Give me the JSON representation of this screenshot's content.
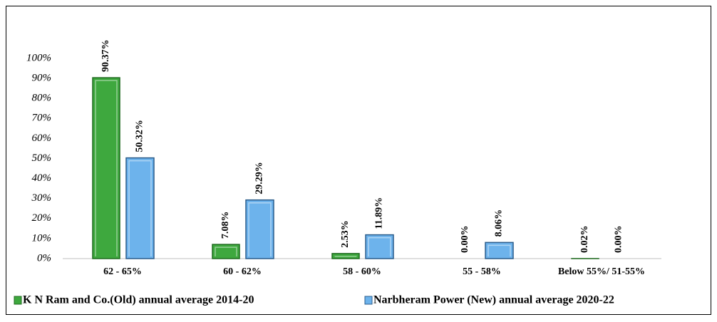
{
  "chart_data": {
    "type": "bar",
    "categories": [
      "62 - 65%",
      "60 - 62%",
      "58 - 60%",
      "55 - 58%",
      "Below 55%/ 51-55%"
    ],
    "series": [
      {
        "name": "K N Ram and Co.(Old) annual average 2014-20",
        "color": "#3ea83e",
        "values": [
          90.37,
          7.08,
          2.53,
          0.0,
          0.02
        ],
        "value_labels": [
          "90.37%",
          "7.08%",
          "2.53%",
          "0.00%",
          "0.02%"
        ]
      },
      {
        "name": "Narbheram Power (New) annual average 2020-22",
        "color": "#6db3ec",
        "values": [
          50.32,
          29.29,
          11.89,
          8.06,
          0.0
        ],
        "value_labels": [
          "50.32%",
          "29.29%",
          "11.89%",
          "8.06%",
          "0.00%"
        ]
      }
    ],
    "ylim": [
      0,
      100
    ],
    "yticks": [
      {
        "value": 0,
        "label": "0%"
      },
      {
        "value": 10,
        "label": "10%"
      },
      {
        "value": 20,
        "label": "20%"
      },
      {
        "value": 30,
        "label": "30%"
      },
      {
        "value": 40,
        "label": "40%"
      },
      {
        "value": 50,
        "label": "50%"
      },
      {
        "value": 60,
        "label": "60%"
      },
      {
        "value": 70,
        "label": "70%"
      },
      {
        "value": 80,
        "label": "80%"
      },
      {
        "value": 90,
        "label": "90%"
      },
      {
        "value": 100,
        "label": "100%"
      }
    ],
    "legend": "bottom"
  }
}
